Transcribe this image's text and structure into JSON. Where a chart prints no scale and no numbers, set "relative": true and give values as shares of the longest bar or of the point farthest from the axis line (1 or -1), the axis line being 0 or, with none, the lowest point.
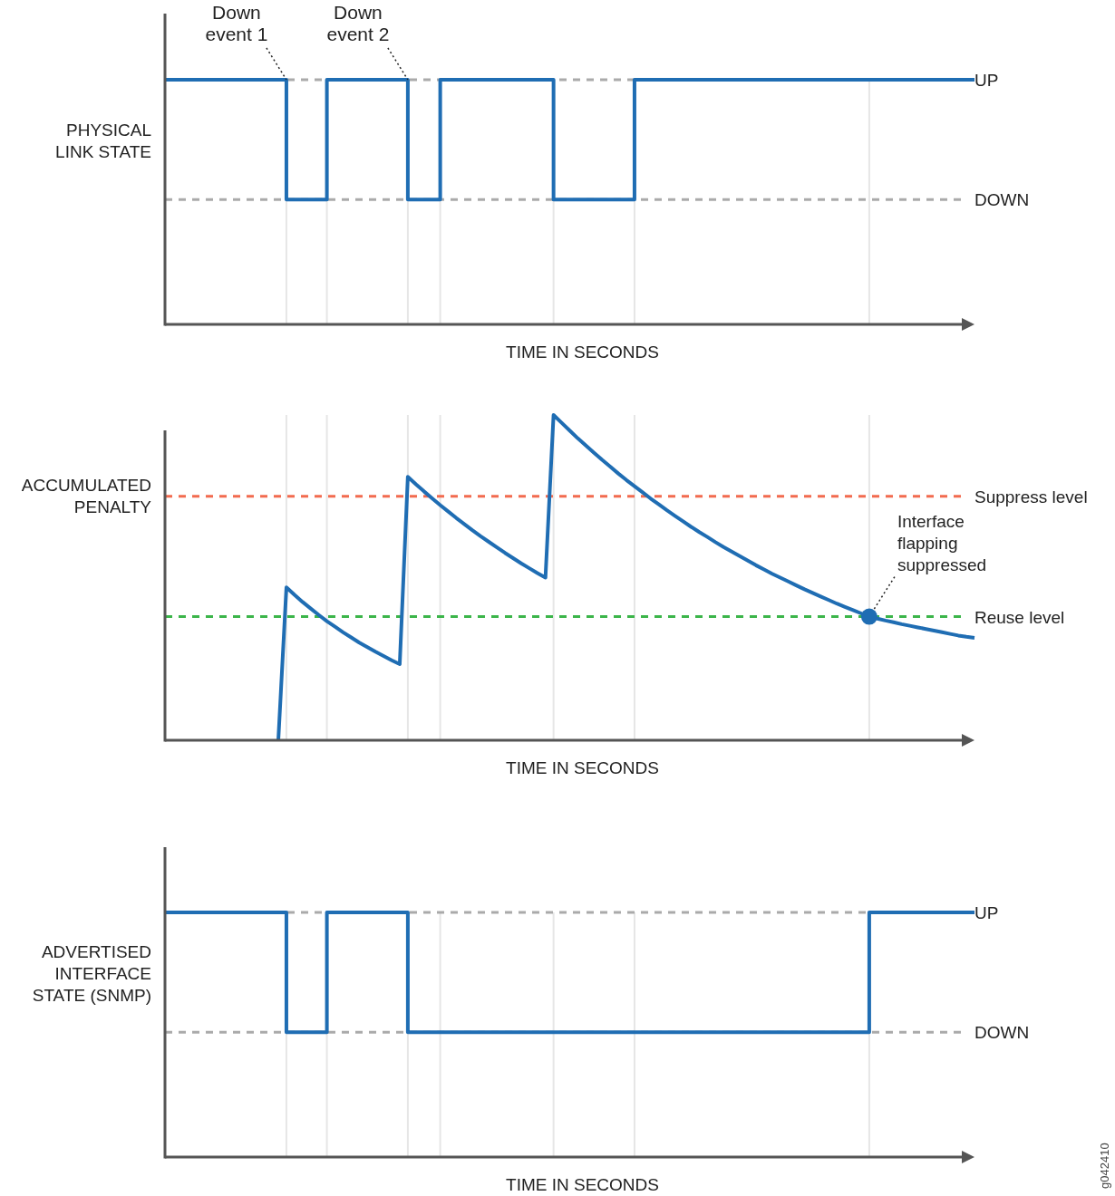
{
  "chart_data": [
    {
      "type": "step",
      "relative": true,
      "ylabel": "PHYSICAL\nLINK STATE",
      "xlabel": "TIME IN SECONDS",
      "categories": [
        null,
        null,
        null,
        null,
        null,
        null,
        null,
        null,
        null,
        null,
        null,
        null,
        null,
        null,
        null,
        null,
        null,
        null,
        null,
        null,
        null,
        null,
        null,
        null,
        null,
        null,
        null,
        null,
        null,
        null,
        null,
        null,
        null,
        null,
        null,
        null,
        null,
        null,
        null,
        null,
        null,
        null,
        null,
        null,
        null,
        null,
        null,
        null,
        null,
        null,
        null,
        null,
        null,
        null,
        null,
        null,
        null,
        null,
        null,
        null,
        null,
        null,
        null,
        null,
        null,
        null,
        null,
        null,
        null,
        null,
        null,
        null,
        null,
        null,
        null,
        null,
        null,
        null,
        null,
        null,
        null,
        null,
        null,
        null,
        null,
        null,
        null,
        null,
        null,
        null,
        null,
        null,
        null,
        null,
        null,
        null,
        null,
        null,
        null,
        null,
        null
      ],
      "series": [
        {
          "color": "#1f6db3",
          "values": [
            1,
            1,
            1,
            1,
            1,
            1,
            1,
            1,
            1,
            1,
            1,
            1,
            1,
            1,
            1,
            0.51,
            0.51,
            0.51,
            0.51,
            0.51,
            1,
            1,
            1,
            1,
            1,
            1,
            1,
            1,
            1,
            1,
            0.51,
            0.51,
            0.51,
            0.51,
            1,
            1,
            1,
            1,
            1,
            1,
            1,
            1,
            1,
            1,
            1,
            1,
            1,
            1,
            0.51,
            0.51,
            0.51,
            0.51,
            0.51,
            0.51,
            0.51,
            0.51,
            0.51,
            0.51,
            1,
            1,
            1,
            1,
            1,
            1,
            1,
            1,
            1,
            1,
            1,
            1,
            1,
            1,
            1,
            1,
            1,
            1,
            1,
            1,
            1,
            1,
            1,
            1,
            1,
            1,
            1,
            1,
            1,
            1,
            1,
            1,
            1,
            1,
            1,
            1,
            1,
            1,
            1,
            1,
            1,
            1,
            1
          ]
        }
      ],
      "grid": "x",
      "ref_lines": [
        {
          "axis": "y",
          "value": 1,
          "label": "UP",
          "color": "#aaaaaa",
          "line_style": "dashed"
        },
        {
          "axis": "y",
          "value": 0.51,
          "label": "DOWN",
          "color": "#aaaaaa",
          "line_style": "dashed"
        }
      ],
      "annotations": [
        {
          "text": "Down\nevent 1",
          "y": 1
        },
        {
          "text": "Down\nevent 2",
          "y": 1
        }
      ]
    },
    {
      "type": "line",
      "relative": true,
      "ylabel": "ACCUMULATED\nPENALTY",
      "xlabel": "TIME IN SECONDS",
      "categories": [
        null,
        null,
        null,
        null,
        null,
        null,
        null,
        null,
        null,
        null,
        null,
        null,
        null,
        null,
        null,
        null,
        null,
        null,
        null,
        null,
        null,
        null,
        null,
        null,
        null,
        null,
        null,
        null,
        null,
        null,
        null,
        null,
        null,
        null,
        null,
        null,
        null,
        null,
        null,
        null,
        null,
        null,
        null,
        null,
        null,
        null,
        null,
        null,
        null,
        null,
        null,
        null,
        null,
        null,
        null,
        null,
        null,
        null,
        null,
        null,
        null,
        null,
        null,
        null,
        null,
        null,
        null,
        null,
        null,
        null,
        null,
        null,
        null,
        null,
        null,
        null,
        null,
        null,
        null,
        null,
        null,
        null,
        null,
        null,
        null,
        null,
        null,
        null,
        null,
        null,
        null,
        null,
        null,
        null,
        null,
        null,
        null,
        null,
        null,
        null,
        null
      ],
      "series": [
        {
          "color": "#1f6db3",
          "values": [
            null,
            null,
            null,
            null,
            null,
            null,
            null,
            null,
            null,
            null,
            null,
            null,
            null,
            null,
            0,
            0.47,
            0.447,
            0.425,
            0.405,
            0.385,
            0.366,
            0.349,
            0.332,
            0.316,
            0.3,
            0.286,
            0.272,
            0.259,
            0.246,
            0.234,
            0.81,
            0.787,
            0.765,
            0.744,
            0.723,
            0.703,
            0.683,
            0.664,
            0.645,
            0.627,
            0.61,
            0.593,
            0.576,
            0.56,
            0.544,
            0.529,
            0.514,
            0.5,
            1,
            0.976,
            0.952,
            0.928,
            0.906,
            0.884,
            0.862,
            0.841,
            0.82,
            0.8,
            0.781,
            0.762,
            0.743,
            0.725,
            0.707,
            0.69,
            0.673,
            0.656,
            0.64,
            0.625,
            0.609,
            0.594,
            0.58,
            0.566,
            0.552,
            0.538,
            0.525,
            0.512,
            0.5,
            0.488,
            0.476,
            0.464,
            0.453,
            0.442,
            0.431,
            0.42,
            0.41,
            0.4,
            0.39,
            0.38,
            0.374,
            0.368,
            0.363,
            0.357,
            0.352,
            0.347,
            0.342,
            0.337,
            0.332,
            0.327,
            0.322,
            0.318,
            0.315
          ]
        }
      ],
      "grid": "x",
      "ref_lines": [
        {
          "axis": "y",
          "value": 0.75,
          "label": "Suppress level",
          "color": "#f26b4f",
          "line_style": "dashed"
        },
        {
          "axis": "y",
          "value": 0.38,
          "label": "Reuse level",
          "color": "#3cb54a",
          "line_style": "dashed"
        }
      ],
      "annotations": [
        {
          "text": "Interface\nflapping\nsuppressed",
          "y": 0.38
        }
      ]
    },
    {
      "type": "step",
      "relative": true,
      "ylabel": "ADVERTISED\nINTERFACE\nSTATE (SNMP)",
      "xlabel": "TIME IN SECONDS",
      "categories": [
        null,
        null,
        null,
        null,
        null,
        null,
        null,
        null,
        null,
        null,
        null,
        null,
        null,
        null,
        null,
        null,
        null,
        null,
        null,
        null,
        null,
        null,
        null,
        null,
        null,
        null,
        null,
        null,
        null,
        null,
        null,
        null,
        null,
        null,
        null,
        null,
        null,
        null,
        null,
        null,
        null,
        null,
        null,
        null,
        null,
        null,
        null,
        null,
        null,
        null,
        null,
        null,
        null,
        null,
        null,
        null,
        null,
        null,
        null,
        null,
        null,
        null,
        null,
        null,
        null,
        null,
        null,
        null,
        null,
        null,
        null,
        null,
        null,
        null,
        null,
        null,
        null,
        null,
        null,
        null,
        null,
        null,
        null,
        null,
        null,
        null,
        null,
        null,
        null,
        null,
        null,
        null,
        null,
        null,
        null,
        null,
        null,
        null,
        null,
        null,
        null
      ],
      "series": [
        {
          "color": "#1f6db3",
          "values": [
            1,
            1,
            1,
            1,
            1,
            1,
            1,
            1,
            1,
            1,
            1,
            1,
            1,
            1,
            1,
            0.51,
            0.51,
            0.51,
            0.51,
            0.51,
            1,
            1,
            1,
            1,
            1,
            1,
            1,
            1,
            1,
            1,
            0.51,
            0.51,
            0.51,
            0.51,
            0.51,
            0.51,
            0.51,
            0.51,
            0.51,
            0.51,
            0.51,
            0.51,
            0.51,
            0.51,
            0.51,
            0.51,
            0.51,
            0.51,
            0.51,
            0.51,
            0.51,
            0.51,
            0.51,
            0.51,
            0.51,
            0.51,
            0.51,
            0.51,
            0.51,
            0.51,
            0.51,
            0.51,
            0.51,
            0.51,
            0.51,
            0.51,
            0.51,
            0.51,
            0.51,
            0.51,
            0.51,
            0.51,
            0.51,
            0.51,
            0.51,
            0.51,
            0.51,
            0.51,
            0.51,
            0.51,
            0.51,
            0.51,
            0.51,
            0.51,
            0.51,
            0.51,
            0.51,
            1,
            1,
            1,
            1,
            1,
            1,
            1,
            1,
            1,
            1,
            1,
            1,
            1,
            1
          ]
        }
      ],
      "grid": "x",
      "ref_lines": [
        {
          "axis": "y",
          "value": 1,
          "label": "UP",
          "color": "#aaaaaa",
          "line_style": "dashed"
        },
        {
          "axis": "y",
          "value": 0.51,
          "label": "DOWN",
          "color": "#aaaaaa",
          "line_style": "dashed"
        }
      ],
      "annotations": [
        "g042410"
      ]
    }
  ]
}
